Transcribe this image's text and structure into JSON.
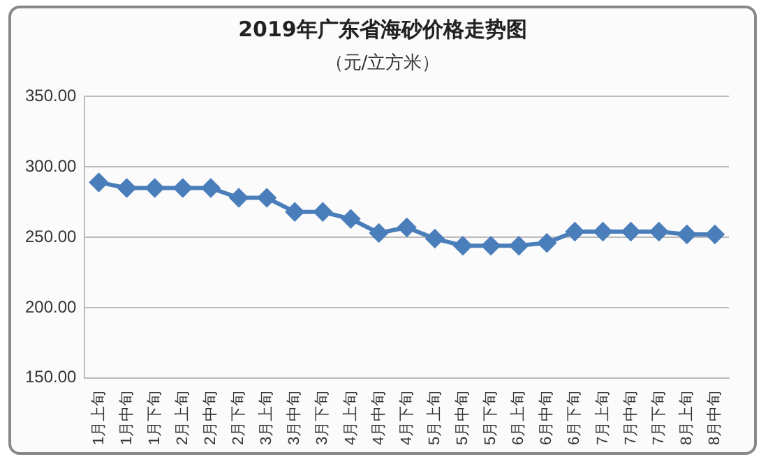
{
  "chart_data": {
    "type": "line",
    "title": "2019年广东省海砂价格走势图",
    "subtitle": "（元/立方米）",
    "categories": [
      "1月上旬",
      "1月中旬",
      "1月下旬",
      "2月上旬",
      "2月中旬",
      "2月下旬",
      "3月上旬",
      "3月中旬",
      "3月下旬",
      "4月上旬",
      "4月中旬",
      "4月下旬",
      "5月上旬",
      "5月中旬",
      "5月下旬",
      "6月上旬",
      "6月中旬",
      "6月下旬",
      "7月上旬",
      "7月中旬",
      "7月下旬",
      "8月上旬",
      "8月中旬"
    ],
    "series": [
      {
        "color": "#4a7ebb",
        "values": [
          289,
          285,
          285,
          285,
          285,
          278,
          278,
          268,
          268,
          263,
          253,
          257,
          249,
          244,
          244,
          244,
          246,
          254,
          254,
          254,
          254,
          252,
          252
        ]
      }
    ],
    "ylim": [
      150,
      350
    ],
    "yticks": [
      {
        "value": 150,
        "label": "150.00"
      },
      {
        "value": 200,
        "label": "200.00"
      },
      {
        "value": 250,
        "label": "250.00"
      },
      {
        "value": 300,
        "label": "300.00"
      },
      {
        "value": 350,
        "label": "350.00"
      }
    ],
    "grid": "y",
    "marker": "diamond",
    "legend": false
  }
}
